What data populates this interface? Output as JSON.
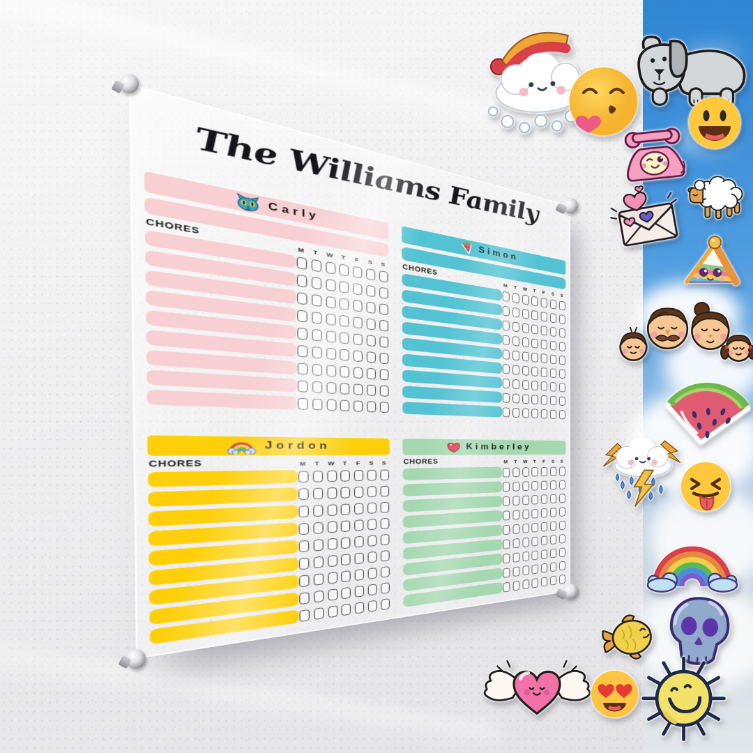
{
  "board": {
    "title": "The Williams Family",
    "chores_label": "CHORES",
    "day_initials": [
      "M",
      "T",
      "W",
      "T",
      "F",
      "S",
      "S"
    ],
    "rows_per_member": 9,
    "checkbox_columns": 7,
    "members": [
      {
        "name": "Carly",
        "icon": "cat-icon",
        "color": "#F8D0D4"
      },
      {
        "name": "Simon",
        "icon": "watermelon-icon",
        "color": "#53C3D3"
      },
      {
        "name": "Jordon",
        "icon": "rainbow-icon",
        "color": "#FFD00A"
      },
      {
        "name": "Kimberley",
        "icon": "heart-icon",
        "color": "#A5D8B1"
      }
    ],
    "material": "clear acrylic with silver standoff screws",
    "standoff_count": 4
  },
  "background": {
    "wall_color": "#F0F0F1",
    "sky_color": "#3F90DA"
  },
  "stickers": [
    {
      "name": "snow-cloud-with-hat",
      "color": "#EFA635"
    },
    {
      "name": "gray-dog",
      "color": "#D4D7DA"
    },
    {
      "name": "kissing-heart-emoji",
      "color": "#FFC83D"
    },
    {
      "name": "grinning-emoji",
      "color": "#FFC83D"
    },
    {
      "name": "pink-telephone",
      "color": "#F4A0BF"
    },
    {
      "name": "sheep",
      "color": "#E2A24F"
    },
    {
      "name": "love-letter",
      "color": "#F291B4"
    },
    {
      "name": "rainbow-cake-slice",
      "color": "#E8923E"
    },
    {
      "name": "family-faces",
      "color": "#F6C795"
    },
    {
      "name": "watermelon-slice",
      "color": "#E05C72"
    },
    {
      "name": "storm-cloud",
      "color": "#F2C14B"
    },
    {
      "name": "tongue-out-emoji",
      "color": "#FFC83D"
    },
    {
      "name": "rainbow",
      "color": "#D8404A"
    },
    {
      "name": "yellow-fish",
      "color": "#F2D24B"
    },
    {
      "name": "purple-skull",
      "color": "#92A9CE"
    },
    {
      "name": "winged-heart",
      "color": "#F272A8"
    },
    {
      "name": "heart-eyes-emoji",
      "color": "#FFC440"
    },
    {
      "name": "smiling-sun",
      "color": "#F2E26A"
    }
  ]
}
